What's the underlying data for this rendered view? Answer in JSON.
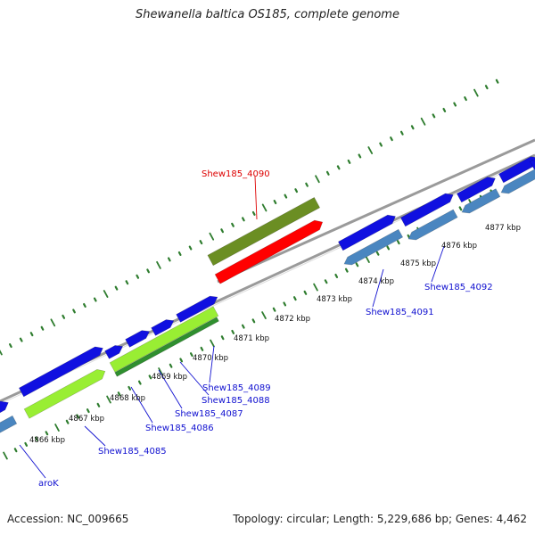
{
  "title": "Shewanella baltica OS185, complete genome",
  "footer": {
    "accession": "Accession: NC_009665",
    "summary": "Topology: circular; Length: 5,229,686 bp; Genes: 4,462"
  },
  "colors": {
    "backbone": "#9a9a9a",
    "tick": "#2f7d2f",
    "gene_forward": "#1010e0",
    "gene_reverse": "#4a86c0",
    "gene_highlight": "#ff0000",
    "gene_highlight_pair": "#6b8e23",
    "gene_lime": "#99ee33",
    "gene_dark_green": "#2f8f2f",
    "label_blue": "#1010d0",
    "label_red": "#dd0000"
  },
  "kbp_ticks": [
    "4866 kbp",
    "4867 kbp",
    "4868 kbp",
    "4869 kbp",
    "4870 kbp",
    "4871 kbp",
    "4872 kbp",
    "4873 kbp",
    "4874 kbp",
    "4875 kbp",
    "4876 kbp",
    "4877 kbp"
  ],
  "gene_labels": [
    {
      "text": "aroK",
      "color": "blue"
    },
    {
      "text": "Shew185_4085",
      "color": "blue"
    },
    {
      "text": "Shew185_4086",
      "color": "blue"
    },
    {
      "text": "Shew185_4087",
      "color": "blue"
    },
    {
      "text": "Shew185_4088",
      "color": "blue"
    },
    {
      "text": "Shew185_4089",
      "color": "blue"
    },
    {
      "text": "Shew185_4090",
      "color": "red"
    },
    {
      "text": "Shew185_4091",
      "color": "blue"
    },
    {
      "text": "Shew185_4092",
      "color": "blue"
    }
  ]
}
